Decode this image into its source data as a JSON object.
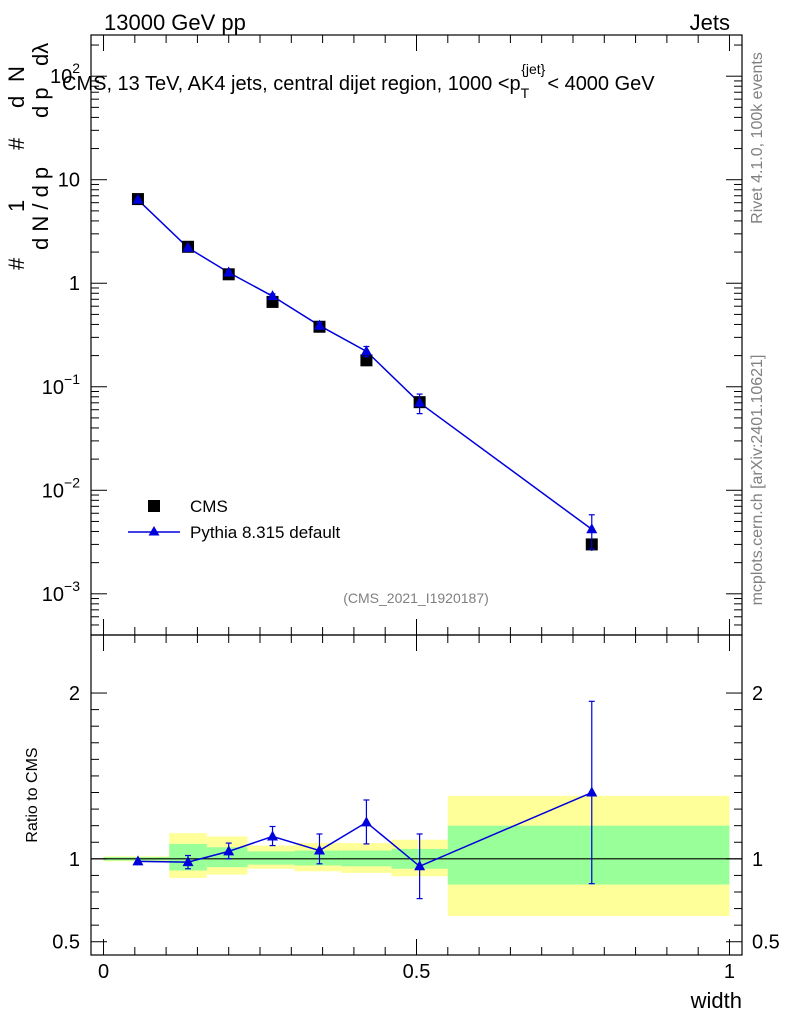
{
  "header": {
    "left": "13000 GeV pp",
    "right": "Jets"
  },
  "side": {
    "rivet": "Rivet 4.1.0,  100k events",
    "mcplots": "mcplots.cern.ch [arXiv:2401.10621]"
  },
  "colors": {
    "mc": "#0000dd",
    "band_outer": "#ffff99",
    "band_inner": "#99ff99",
    "data": "#000000"
  },
  "chart_data": {
    "type": "scatter",
    "title": "CMS, 13 TeV, AK4 jets, central dijet region, 1000 <p",
    "title_sub": "T",
    "title_sup": "{jet}",
    "title_tail": "< 4000 GeV",
    "analysis_id": "(CMS_2021_I1920187)",
    "xlabel": "width",
    "xlim": [
      -0.02,
      1.02
    ],
    "x_ticks": [
      "0",
      "0.5",
      "1"
    ],
    "main": {
      "yscale": "log",
      "ylim": [
        0.0004,
        250
      ],
      "y_ticks": [
        {
          "v": 0.001,
          "base": "10",
          "exp": "−3"
        },
        {
          "v": 0.01,
          "base": "10",
          "exp": "−2"
        },
        {
          "v": 0.1,
          "base": "10",
          "exp": "−1"
        },
        {
          "v": 1,
          "base": "1",
          "exp": ""
        },
        {
          "v": 10,
          "base": "10",
          "exp": ""
        },
        {
          "v": 100,
          "base": "10",
          "exp": "2"
        }
      ],
      "ylabel": "# 1/(dN / d p_T)  # d²N/(d p_T dλ)",
      "ylabel_parts": [
        "#",
        "1",
        "d N / d p",
        "#",
        "d",
        "N",
        "d p",
        "dλ"
      ],
      "legend": [
        {
          "label": "CMS",
          "marker": "square"
        },
        {
          "label": "Pythia 8.315 default",
          "marker": "triangle"
        }
      ],
      "series": [
        {
          "name": "CMS",
          "x": [
            0.055,
            0.135,
            0.2,
            0.27,
            0.345,
            0.42,
            0.505,
            0.78
          ],
          "y": [
            6.5,
            2.25,
            1.22,
            0.66,
            0.38,
            0.18,
            0.071,
            0.003
          ],
          "yerr_lo": [
            6.2,
            2.15,
            1.17,
            0.63,
            0.36,
            0.168,
            0.063,
            0.0026
          ],
          "yerr_hi": [
            6.8,
            2.35,
            1.27,
            0.69,
            0.4,
            0.192,
            0.079,
            0.0034
          ]
        },
        {
          "name": "Pythia 8.315 default",
          "x": [
            0.055,
            0.135,
            0.2,
            0.27,
            0.345,
            0.42,
            0.505,
            0.78
          ],
          "y": [
            6.4,
            2.2,
            1.27,
            0.75,
            0.39,
            0.22,
            0.07,
            0.0042
          ],
          "yerr_lo": [
            6.3,
            2.15,
            1.22,
            0.71,
            0.36,
            0.195,
            0.055,
            0.0027
          ],
          "yerr_hi": [
            6.5,
            2.25,
            1.32,
            0.79,
            0.42,
            0.245,
            0.085,
            0.0058
          ]
        }
      ]
    },
    "ratio": {
      "ylabel": "Ratio to CMS",
      "ylim": [
        0.42,
        2.35
      ],
      "y_ticks": [
        "0.5",
        "1",
        "2"
      ],
      "y_tick_values": [
        0.5,
        1,
        2
      ],
      "bands": [
        {
          "x0": 0.0,
          "x1": 0.105,
          "outer_lo": 0.985,
          "outer_hi": 1.015,
          "inner_lo": 0.99,
          "inner_hi": 1.01
        },
        {
          "x0": 0.105,
          "x1": 0.165,
          "outer_lo": 0.885,
          "outer_hi": 1.155,
          "inner_lo": 0.93,
          "inner_hi": 1.09
        },
        {
          "x0": 0.165,
          "x1": 0.23,
          "outer_lo": 0.905,
          "outer_hi": 1.135,
          "inner_lo": 0.95,
          "inner_hi": 1.07
        },
        {
          "x0": 0.23,
          "x1": 0.305,
          "outer_lo": 0.94,
          "outer_hi": 1.08,
          "inner_lo": 0.965,
          "inner_hi": 1.045
        },
        {
          "x0": 0.305,
          "x1": 0.38,
          "outer_lo": 0.925,
          "outer_hi": 1.095,
          "inner_lo": 0.96,
          "inner_hi": 1.05
        },
        {
          "x0": 0.38,
          "x1": 0.46,
          "outer_lo": 0.915,
          "outer_hi": 1.095,
          "inner_lo": 0.955,
          "inner_hi": 1.05
        },
        {
          "x0": 0.46,
          "x1": 0.55,
          "outer_lo": 0.895,
          "outer_hi": 1.115,
          "inner_lo": 0.94,
          "inner_hi": 1.06
        },
        {
          "x0": 0.55,
          "x1": 1.0,
          "outer_lo": 0.655,
          "outer_hi": 1.38,
          "inner_lo": 0.845,
          "inner_hi": 1.2
        }
      ],
      "series": [
        {
          "name": "Pythia 8.315 default",
          "x": [
            0.055,
            0.135,
            0.2,
            0.27,
            0.345,
            0.42,
            0.505,
            0.78
          ],
          "y": [
            0.985,
            0.98,
            1.045,
            1.135,
            1.05,
            1.22,
            0.955,
            1.4
          ],
          "yerr_lo": [
            0.985,
            0.94,
            1.0,
            1.08,
            0.97,
            1.09,
            0.76,
            0.85
          ],
          "yerr_hi": [
            0.985,
            1.02,
            1.095,
            1.195,
            1.15,
            1.355,
            1.15,
            1.95
          ]
        }
      ]
    }
  }
}
